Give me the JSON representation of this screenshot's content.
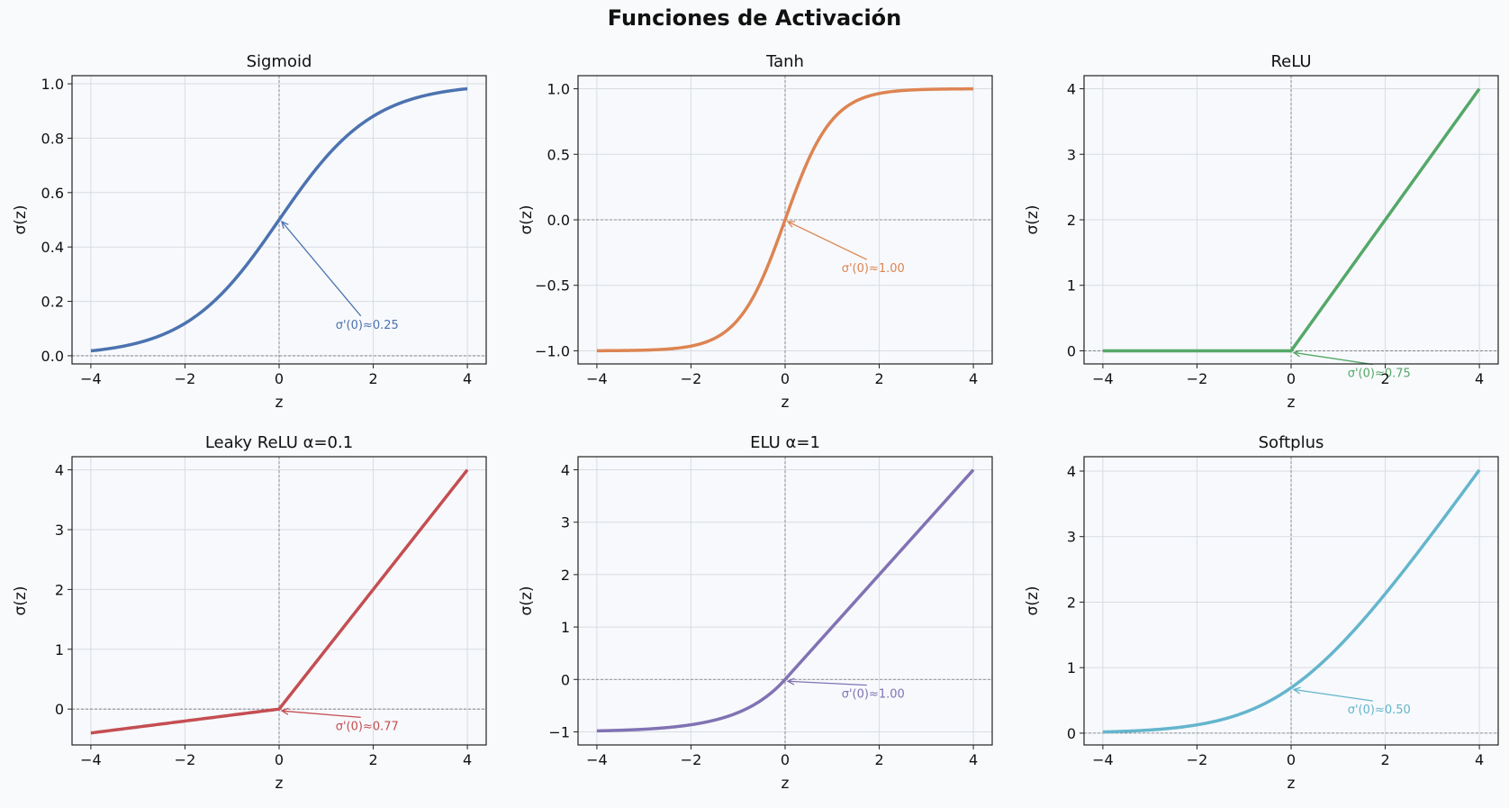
{
  "suptitle": "Funciones de Activación",
  "chart_data": [
    {
      "type": "line",
      "title": "Sigmoid",
      "xlabel": "z",
      "ylabel": "σ(z)",
      "func": "sigmoid",
      "color": "#4c72b0",
      "xlim": [
        -4.4,
        4.4
      ],
      "ylim": [
        -0.03,
        1.03
      ],
      "xticks": [
        -4,
        -2,
        0,
        2,
        4
      ],
      "xtick_labels": [
        "−4",
        "−2",
        "0",
        "2",
        "4"
      ],
      "yticks": [
        0.0,
        0.2,
        0.4,
        0.6,
        0.8,
        1.0
      ],
      "ytick_labels": [
        "0.0",
        "0.2",
        "0.4",
        "0.6",
        "0.8",
        "1.0"
      ],
      "grid": true,
      "annotation": {
        "text": "σ'(0)≈0.25",
        "point": [
          0,
          0.5
        ],
        "text_at": [
          1.2,
          0.1
        ]
      }
    },
    {
      "type": "line",
      "title": "Tanh",
      "xlabel": "z",
      "ylabel": "σ(z)",
      "func": "tanh",
      "color": "#dd8452",
      "xlim": [
        -4.4,
        4.4
      ],
      "ylim": [
        -1.1,
        1.1
      ],
      "xticks": [
        -4,
        -2,
        0,
        2,
        4
      ],
      "xtick_labels": [
        "−4",
        "−2",
        "0",
        "2",
        "4"
      ],
      "yticks": [
        -1.0,
        -0.5,
        0.0,
        0.5,
        1.0
      ],
      "ytick_labels": [
        "−1.0",
        "−0.5",
        "0.0",
        "0.5",
        "1.0"
      ],
      "grid": true,
      "annotation": {
        "text": "σ'(0)≈1.00",
        "point": [
          0,
          0
        ],
        "text_at": [
          1.2,
          -0.4
        ]
      }
    },
    {
      "type": "line",
      "title": "ReLU",
      "xlabel": "z",
      "ylabel": "σ(z)",
      "func": "relu",
      "color": "#55a868",
      "xlim": [
        -4.4,
        4.4
      ],
      "ylim": [
        -0.2,
        4.2
      ],
      "xticks": [
        -4,
        -2,
        0,
        2,
        4
      ],
      "xtick_labels": [
        "−4",
        "−2",
        "0",
        "2",
        "4"
      ],
      "yticks": [
        0,
        1,
        2,
        3,
        4
      ],
      "ytick_labels": [
        "0",
        "1",
        "2",
        "3",
        "4"
      ],
      "grid": true,
      "annotation": {
        "text": "σ'(0)≈0.75",
        "point": [
          0,
          0
        ],
        "text_at": [
          1.2,
          -0.4
        ]
      }
    },
    {
      "type": "line",
      "title": "Leaky ReLU α=0.1",
      "xlabel": "z",
      "ylabel": "σ(z)",
      "func": "leaky_relu",
      "alpha": 0.1,
      "color": "#c44e52",
      "xlim": [
        -4.4,
        4.4
      ],
      "ylim": [
        -0.6,
        4.22
      ],
      "xticks": [
        -4,
        -2,
        0,
        2,
        4
      ],
      "xtick_labels": [
        "−4",
        "−2",
        "0",
        "2",
        "4"
      ],
      "yticks": [
        0,
        1,
        2,
        3,
        4
      ],
      "ytick_labels": [
        "0",
        "1",
        "2",
        "3",
        "4"
      ],
      "grid": true,
      "annotation": {
        "text": "σ'(0)≈0.77",
        "point": [
          0,
          0
        ],
        "text_at": [
          1.2,
          -0.35
        ]
      }
    },
    {
      "type": "line",
      "title": "ELU α=1",
      "xlabel": "z",
      "ylabel": "σ(z)",
      "func": "elu",
      "alpha": 1,
      "color": "#8172b3",
      "xlim": [
        -4.4,
        4.4
      ],
      "ylim": [
        -1.25,
        4.25
      ],
      "xticks": [
        -4,
        -2,
        0,
        2,
        4
      ],
      "xtick_labels": [
        "−4",
        "−2",
        "0",
        "2",
        "4"
      ],
      "yticks": [
        -1,
        0,
        1,
        2,
        3,
        4
      ],
      "ytick_labels": [
        "−1",
        "0",
        "1",
        "2",
        "3",
        "4"
      ],
      "grid": true,
      "annotation": {
        "text": "σ'(0)≈1.00",
        "point": [
          0,
          0
        ],
        "text_at": [
          1.2,
          -0.35
        ]
      }
    },
    {
      "type": "line",
      "title": "Softplus",
      "xlabel": "z",
      "ylabel": "σ(z)",
      "func": "softplus",
      "color": "#64b5cd",
      "xlim": [
        -4.4,
        4.4
      ],
      "ylim": [
        -0.18,
        4.22
      ],
      "xticks": [
        -4,
        -2,
        0,
        2,
        4
      ],
      "xtick_labels": [
        "−4",
        "−2",
        "0",
        "2",
        "4"
      ],
      "yticks": [
        0,
        1,
        2,
        3,
        4
      ],
      "ytick_labels": [
        "0",
        "1",
        "2",
        "3",
        "4"
      ],
      "grid": true,
      "annotation": {
        "text": "σ'(0)≈0.50",
        "point": [
          0,
          0.693
        ],
        "text_at": [
          1.2,
          0.3
        ]
      }
    }
  ]
}
